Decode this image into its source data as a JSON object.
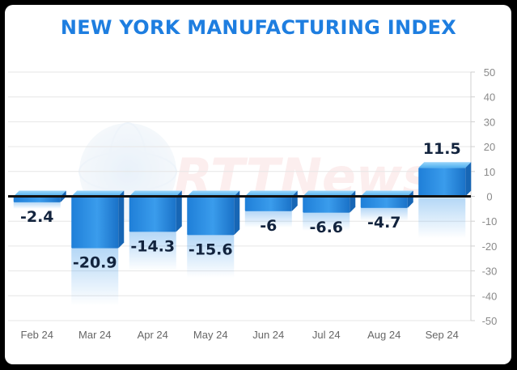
{
  "title": "NEW YORK MANUFACTURING INDEX",
  "chart_data": {
    "type": "bar",
    "title": "NEW YORK MANUFACTURING INDEX",
    "categories": [
      "Feb 24",
      "Mar 24",
      "Apr 24",
      "May 24",
      "Jun 24",
      "Jul 24",
      "Aug 24",
      "Sep 24"
    ],
    "values": [
      -2.4,
      -20.9,
      -14.3,
      -15.6,
      -6,
      -6.6,
      -4.7,
      11.5
    ],
    "data_labels": [
      "-2.4",
      "-20.9",
      "-14.3",
      "-15.6",
      "-6",
      "-6.6",
      "-4.7",
      "11.5"
    ],
    "ylim": [
      -50,
      50
    ],
    "yticks": [
      50,
      40,
      30,
      20,
      10,
      0,
      -10,
      -20,
      -30,
      -40,
      -50
    ],
    "ytick_labels": [
      "50",
      "40",
      "30",
      "20",
      "10",
      "0",
      "-10",
      "-20",
      "-30",
      "-40",
      "-50"
    ],
    "y_axis_position": "right",
    "grid": true,
    "legend": "none",
    "bar_color": "#2a8ee6",
    "bar_color_light": "#6fc0f5",
    "watermark": "RTTNews"
  }
}
